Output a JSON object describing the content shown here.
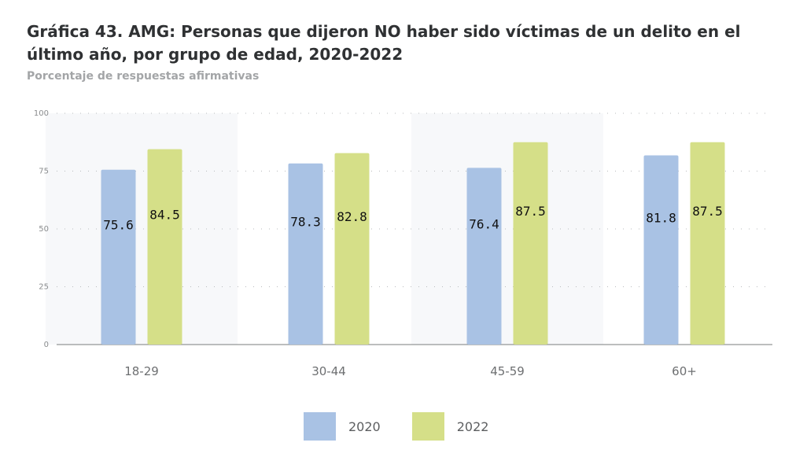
{
  "header": {
    "title": "Gráfica 43. AMG: Personas que dijeron NO haber sido víctimas de un delito en el último año, por grupo de edad, 2020-2022",
    "subtitle": "Porcentaje de respuestas afirmativas"
  },
  "colors": {
    "series_2020": "#a9c2e4",
    "series_2022": "#d5df88",
    "band": "#f7f8fa",
    "grid": "#b9bbbd",
    "axis": "#7a7c7e"
  },
  "chart_data": {
    "type": "bar",
    "title": "Gráfica 43. AMG: Personas que dijeron NO haber sido víctimas de un delito en el último año, por grupo de edad, 2020-2022",
    "subtitle": "Porcentaje de respuestas afirmativas",
    "categories": [
      "18-29",
      "30-44",
      "45-59",
      "60+"
    ],
    "series": [
      {
        "name": "2020",
        "values": [
          75.6,
          78.3,
          76.4,
          81.8
        ]
      },
      {
        "name": "2022",
        "values": [
          84.5,
          82.8,
          87.5,
          87.5
        ]
      }
    ],
    "yticks": [
      "0",
      "25",
      "50",
      "75",
      "100"
    ],
    "ylim": [
      0,
      100
    ],
    "xlabel": "",
    "ylabel": "",
    "grid": true,
    "legend": "bottom-center"
  }
}
